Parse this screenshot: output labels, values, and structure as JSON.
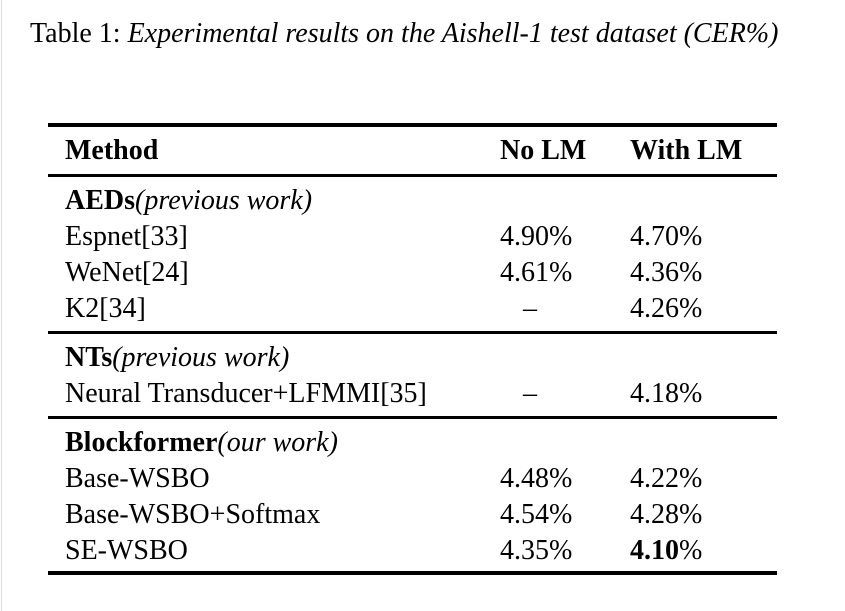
{
  "caption": {
    "label": "Table 1:",
    "title": "Experimental results on the Aishell-1 test dataset (CER%)"
  },
  "table": {
    "columns": [
      "Method",
      "No LM",
      "With LM"
    ],
    "sections": [
      {
        "name": "AEDs",
        "qualifier": "(previous work)",
        "rows": [
          {
            "method": "Espnet[33]",
            "no_lm": "4.90%",
            "with_lm": "4.70%"
          },
          {
            "method": "WeNet[24]",
            "no_lm": "4.61%",
            "with_lm": "4.36%"
          },
          {
            "method": "K2[34]",
            "no_lm": "–",
            "with_lm": "4.26%"
          }
        ]
      },
      {
        "name": "NTs",
        "qualifier": "(previous work)",
        "rows": [
          {
            "method": "Neural Transducer+LFMMI[35]",
            "no_lm": "–",
            "with_lm": "4.18%"
          }
        ]
      },
      {
        "name": "Blockformer",
        "qualifier": "(our work)",
        "rows": [
          {
            "method": "Base-WSBO",
            "no_lm": "4.48%",
            "with_lm": "4.22%"
          },
          {
            "method": "Base-WSBO+Softmax",
            "no_lm": "4.54%",
            "with_lm": "4.28%"
          },
          {
            "method": "SE-WSBO",
            "no_lm": "4.35%",
            "with_lm": "4.10%",
            "with_lm_bold": true
          }
        ]
      }
    ]
  },
  "colors": {
    "text": "#000000",
    "background": "#ffffff",
    "rule": "#000000"
  }
}
